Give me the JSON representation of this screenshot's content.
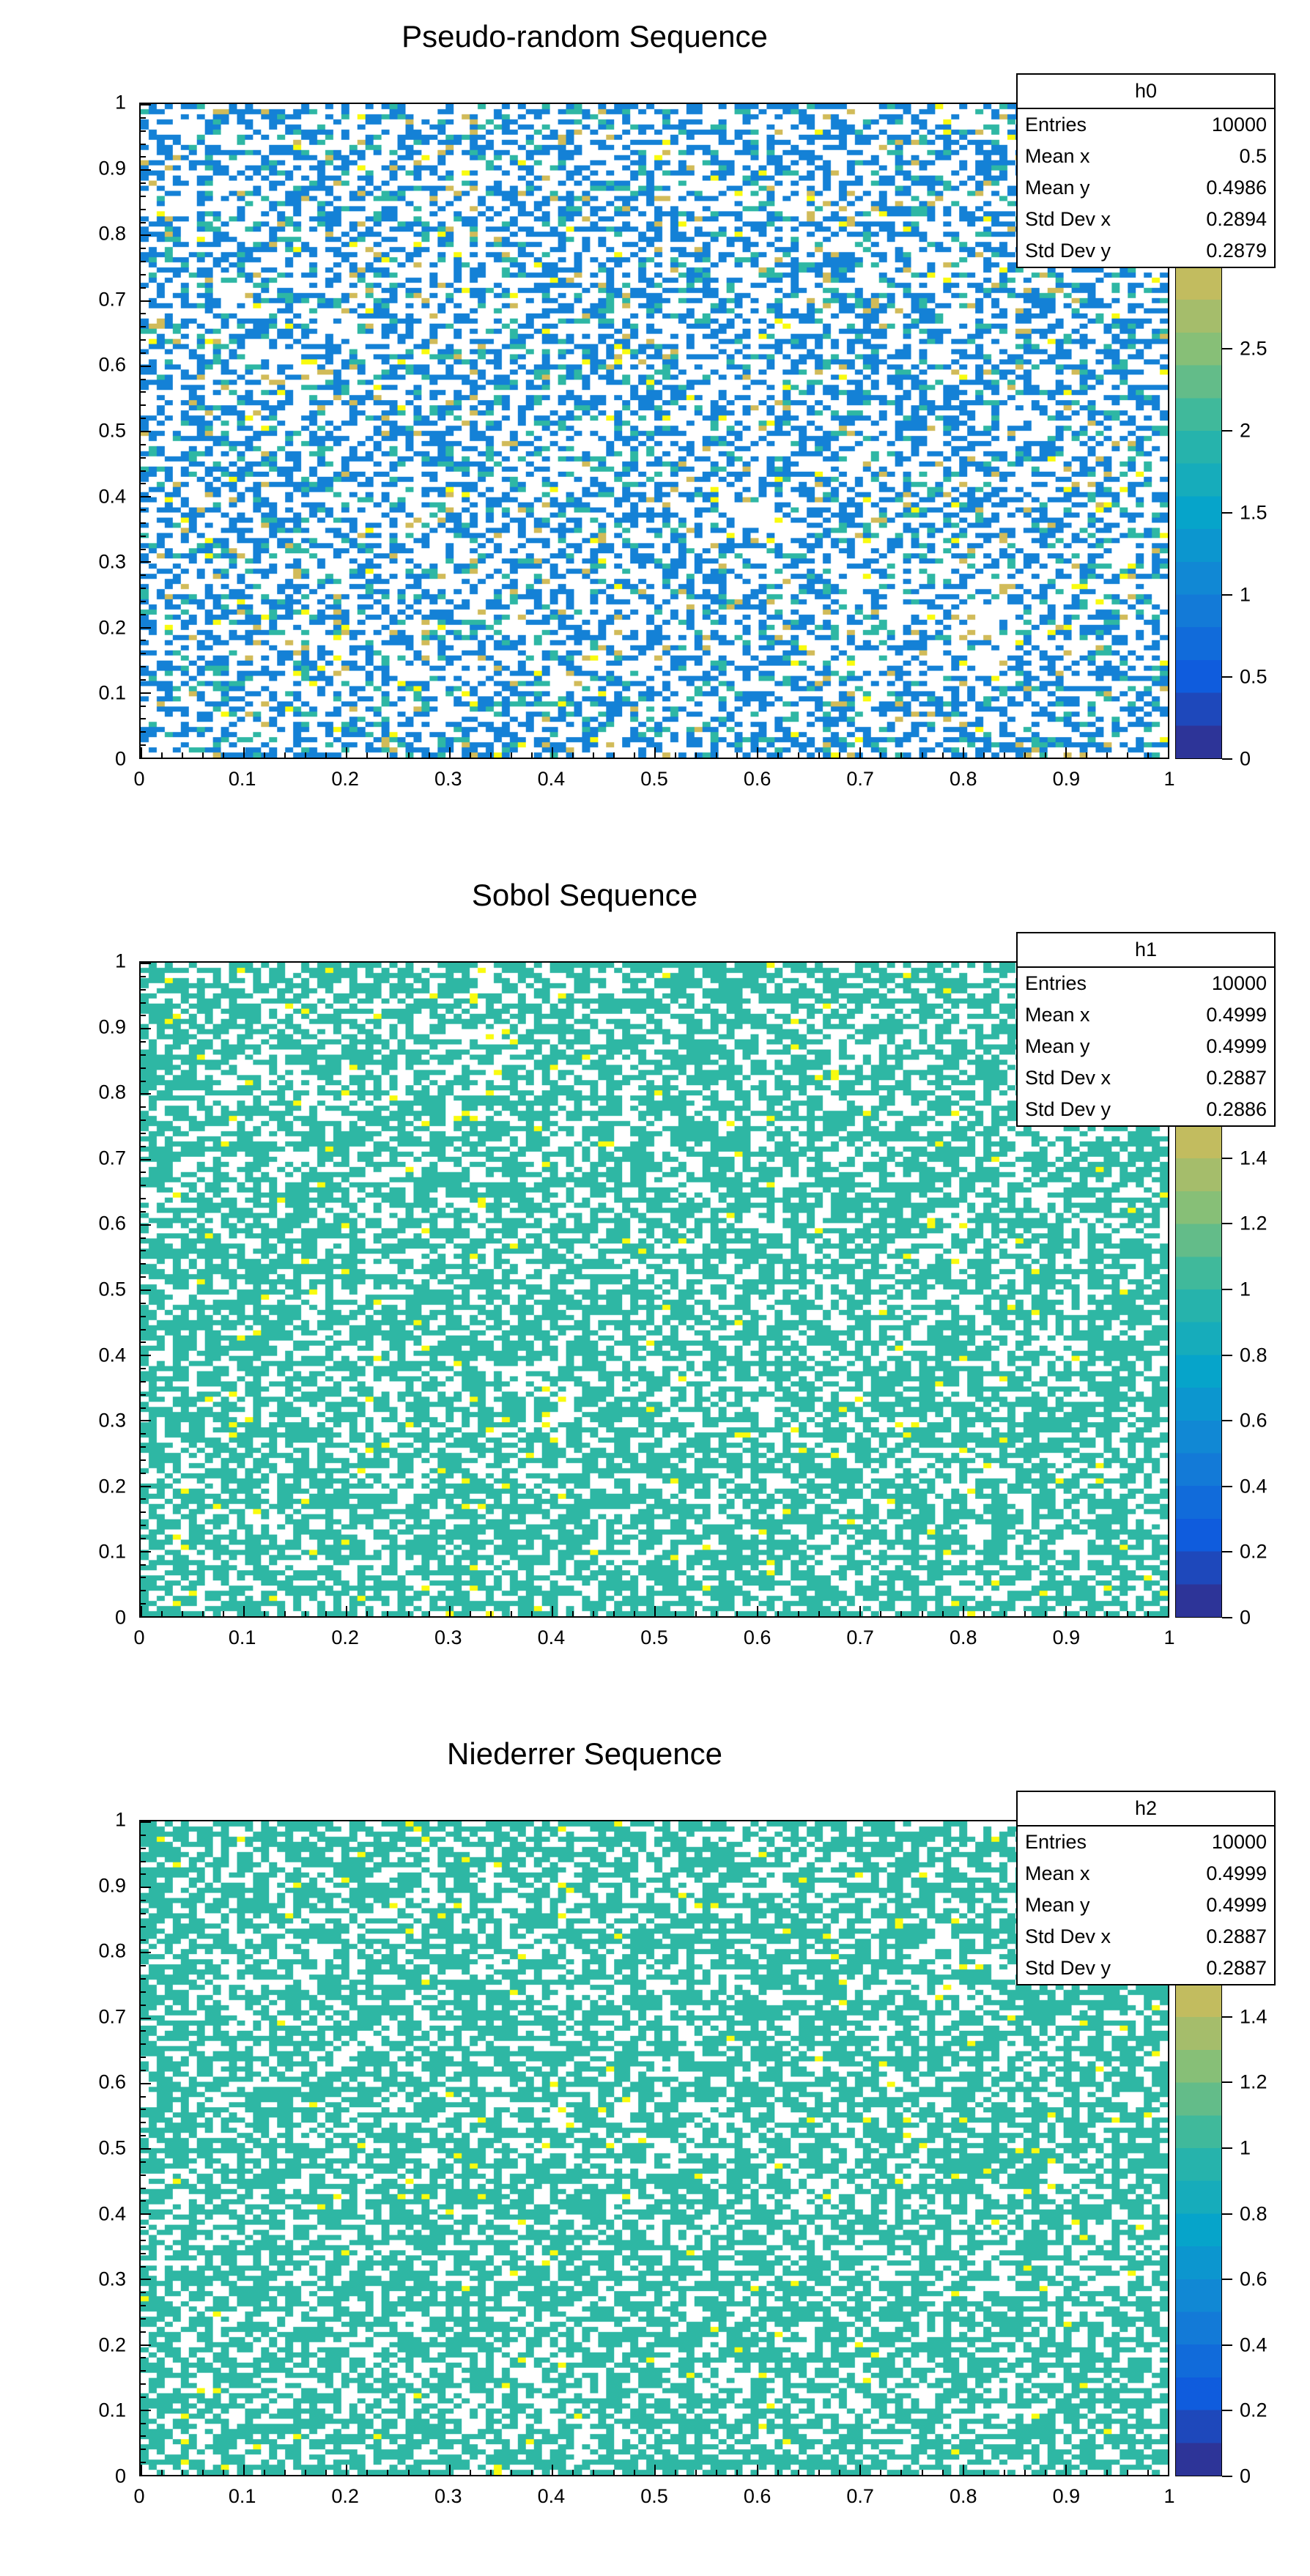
{
  "app": {
    "background": "#ffffff"
  },
  "palette": {
    "name": "bird-palette",
    "stops": [
      "#352A87",
      "#0F5CDD",
      "#1481D6",
      "#06A4CA",
      "#2EB7A4",
      "#87BF77",
      "#D1BB59",
      "#FEC932",
      "#F9FB0E"
    ],
    "steps": 20
  },
  "chart_data": [
    {
      "type": "heatmap",
      "title": "Pseudo-random Sequence",
      "x_range": [
        0,
        1
      ],
      "y_range": [
        0,
        1
      ],
      "x_tick_labels": [
        "0",
        "0.1",
        "0.2",
        "0.3",
        "0.4",
        "0.5",
        "0.6",
        "0.7",
        "0.8",
        "0.9",
        "1"
      ],
      "y_tick_labels": [
        "0",
        "0.1",
        "0.2",
        "0.3",
        "0.4",
        "0.5",
        "0.6",
        "0.7",
        "0.8",
        "0.9",
        "1"
      ],
      "stats": {
        "name": "h0",
        "rows": [
          [
            "Entries",
            "10000"
          ],
          [
            "Mean x",
            "0.5"
          ],
          [
            "Mean y",
            "0.4986"
          ],
          [
            "Std Dev x",
            "0.2894"
          ],
          [
            "Std Dev y",
            "0.2879"
          ]
        ]
      },
      "colorbar": {
        "z_max": 4,
        "ticks": [
          {
            "label": "0",
            "value": 0
          },
          {
            "label": "0.5",
            "value": 0.5
          },
          {
            "label": "1",
            "value": 1
          },
          {
            "label": "1.5",
            "value": 1.5
          },
          {
            "label": "2",
            "value": 2
          },
          {
            "label": "2.5",
            "value": 2.5
          }
        ]
      },
      "heatmap": {
        "nx": 128,
        "ny": 128,
        "seed": 101,
        "levels": [
          {
            "p": 0.545,
            "color": null
          },
          {
            "p": 0.335,
            "color": "#1481D6"
          },
          {
            "p": 0.085,
            "color": "#2EB7A4"
          },
          {
            "p": 0.025,
            "color": "#D1BB59"
          },
          {
            "p": 0.01,
            "color": "#F9FB0E"
          }
        ]
      }
    },
    {
      "type": "heatmap",
      "title": "Sobol Sequence",
      "x_range": [
        0,
        1
      ],
      "y_range": [
        0,
        1
      ],
      "x_tick_labels": [
        "0",
        "0.1",
        "0.2",
        "0.3",
        "0.4",
        "0.5",
        "0.6",
        "0.7",
        "0.8",
        "0.9",
        "1"
      ],
      "y_tick_labels": [
        "0",
        "0.1",
        "0.2",
        "0.3",
        "0.4",
        "0.5",
        "0.6",
        "0.7",
        "0.8",
        "0.9",
        "1"
      ],
      "stats": {
        "name": "h1",
        "rows": [
          [
            "Entries",
            "10000"
          ],
          [
            "Mean x",
            "0.4999"
          ],
          [
            "Mean y",
            "0.4999"
          ],
          [
            "Std Dev x",
            "0.2887"
          ],
          [
            "Std Dev y",
            "0.2886"
          ]
        ]
      },
      "colorbar": {
        "z_max": 2,
        "ticks": [
          {
            "label": "0",
            "value": 0
          },
          {
            "label": "0.2",
            "value": 0.2
          },
          {
            "label": "0.4",
            "value": 0.4
          },
          {
            "label": "0.6",
            "value": 0.6
          },
          {
            "label": "0.8",
            "value": 0.8
          },
          {
            "label": "1",
            "value": 1
          },
          {
            "label": "1.2",
            "value": 1.2
          },
          {
            "label": "1.4",
            "value": 1.4
          }
        ]
      },
      "heatmap": {
        "nx": 128,
        "ny": 128,
        "seed": 202,
        "levels": [
          {
            "p": 0.375,
            "color": null
          },
          {
            "p": 0.613,
            "color": "#2EB7A4"
          },
          {
            "p": 0.012,
            "color": "#F9FB0E"
          }
        ]
      }
    },
    {
      "type": "heatmap",
      "title": "Niederrer Sequence",
      "x_range": [
        0,
        1
      ],
      "y_range": [
        0,
        1
      ],
      "x_tick_labels": [
        "0",
        "0.1",
        "0.2",
        "0.3",
        "0.4",
        "0.5",
        "0.6",
        "0.7",
        "0.8",
        "0.9",
        "1"
      ],
      "y_tick_labels": [
        "0",
        "0.1",
        "0.2",
        "0.3",
        "0.4",
        "0.5",
        "0.6",
        "0.7",
        "0.8",
        "0.9",
        "1"
      ],
      "stats": {
        "name": "h2",
        "rows": [
          [
            "Entries",
            "10000"
          ],
          [
            "Mean x",
            "0.4999"
          ],
          [
            "Mean y",
            "0.4999"
          ],
          [
            "Std Dev x",
            "0.2887"
          ],
          [
            "Std Dev y",
            "0.2887"
          ]
        ]
      },
      "colorbar": {
        "z_max": 2,
        "ticks": [
          {
            "label": "0",
            "value": 0
          },
          {
            "label": "0.2",
            "value": 0.2
          },
          {
            "label": "0.4",
            "value": 0.4
          },
          {
            "label": "0.6",
            "value": 0.6
          },
          {
            "label": "0.8",
            "value": 0.8
          },
          {
            "label": "1",
            "value": 1
          },
          {
            "label": "1.2",
            "value": 1.2
          },
          {
            "label": "1.4",
            "value": 1.4
          }
        ]
      },
      "heatmap": {
        "nx": 128,
        "ny": 128,
        "seed": 303,
        "levels": [
          {
            "p": 0.375,
            "color": null
          },
          {
            "p": 0.613,
            "color": "#2EB7A4"
          },
          {
            "p": 0.012,
            "color": "#F9FB0E"
          }
        ]
      }
    }
  ]
}
